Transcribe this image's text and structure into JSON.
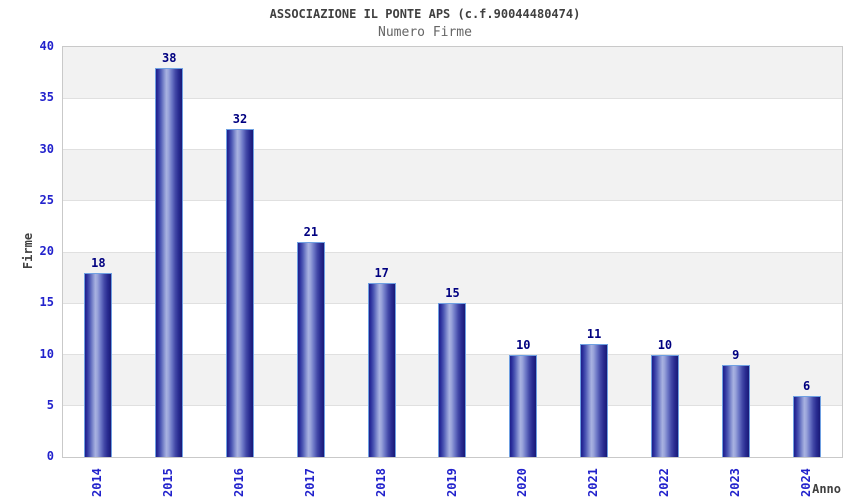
{
  "chart_data": {
    "type": "bar",
    "title": "ASSOCIAZIONE IL PONTE APS (c.f.90044480474)",
    "subtitle": "Numero Firme",
    "xlabel": "Anno",
    "ylabel": "Firme",
    "categories": [
      "2014",
      "2015",
      "2016",
      "2017",
      "2018",
      "2019",
      "2020",
      "2021",
      "2022",
      "2023",
      "2024"
    ],
    "values": [
      18,
      38,
      32,
      21,
      17,
      15,
      10,
      11,
      10,
      9,
      6
    ],
    "ylim": [
      0,
      40
    ],
    "ytick_step": 5,
    "yticks": [
      "0",
      "5",
      "10",
      "15",
      "20",
      "25",
      "30",
      "35",
      "40"
    ],
    "grid": true,
    "bands": "gray stripes between 5-10, 15-20, 25-30, 35-40",
    "legend": "none"
  },
  "colors": {
    "bar_dark": "#1f1f8a",
    "bar_light": "#a9b2e1",
    "bar_edge": "#6fa0e2",
    "tick_label": "#2222cc",
    "value_label": "#000080",
    "band": "#f2f2f2",
    "grid": "#e0e0e0",
    "title": "#404040",
    "subtitle": "#666666"
  }
}
